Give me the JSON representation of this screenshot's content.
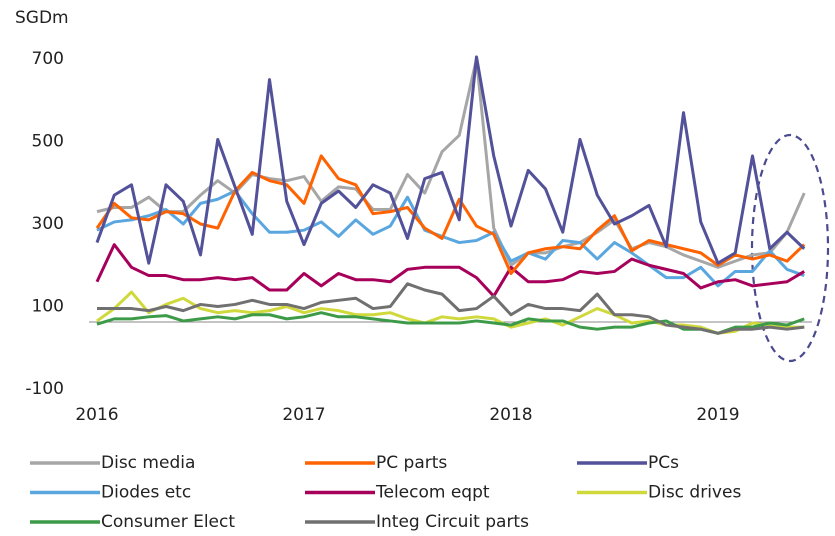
{
  "chart_data": {
    "type": "line",
    "y_label": "SGDm",
    "categories": [
      "2016",
      null,
      null,
      null,
      null,
      null,
      null,
      null,
      null,
      null,
      null,
      null,
      "2017",
      null,
      null,
      null,
      null,
      null,
      null,
      null,
      null,
      null,
      null,
      null,
      "2018",
      null,
      null,
      null,
      null,
      null,
      null,
      null,
      null,
      null,
      null,
      null,
      "2019",
      null,
      null,
      null,
      null,
      null
    ],
    "ylim": [
      -100,
      700
    ],
    "yticks": [
      -100,
      100,
      300,
      500,
      700
    ],
    "series": [
      {
        "name": "Disc media",
        "color": "#a6a6a6",
        "values": [
          330,
          340,
          340,
          365,
          330,
          330,
          370,
          405,
          375,
          420,
          410,
          405,
          415,
          355,
          390,
          385,
          335,
          335,
          420,
          375,
          475,
          515,
          700,
          290,
          200,
          230,
          230,
          245,
          255,
          280,
          310,
          240,
          255,
          245,
          225,
          210,
          195,
          210,
          225,
          230,
          280,
          375
        ]
      },
      {
        "name": "PC parts",
        "color": "#ff6200",
        "values": [
          290,
          350,
          315,
          310,
          330,
          325,
          300,
          290,
          380,
          425,
          405,
          395,
          350,
          465,
          410,
          395,
          325,
          330,
          340,
          290,
          265,
          360,
          295,
          275,
          180,
          230,
          240,
          245,
          240,
          285,
          320,
          235,
          260,
          250,
          240,
          230,
          200,
          225,
          215,
          225,
          210,
          250
        ]
      },
      {
        "name": "PCs",
        "color": "#525199",
        "values": [
          255,
          370,
          395,
          205,
          395,
          355,
          225,
          505,
          390,
          275,
          650,
          355,
          250,
          350,
          380,
          340,
          395,
          375,
          265,
          410,
          425,
          310,
          705,
          465,
          295,
          430,
          385,
          280,
          505,
          370,
          300,
          320,
          345,
          245,
          570,
          305,
          205,
          230,
          465,
          240,
          280,
          240
        ]
      },
      {
        "name": "Diodes etc",
        "color": "#5aa7e0",
        "values": [
          285,
          305,
          310,
          320,
          335,
          300,
          350,
          360,
          380,
          325,
          280,
          280,
          285,
          305,
          270,
          310,
          275,
          295,
          365,
          285,
          270,
          255,
          260,
          280,
          210,
          230,
          215,
          260,
          255,
          215,
          255,
          230,
          200,
          170,
          170,
          195,
          150,
          185,
          185,
          235,
          190,
          175
        ]
      },
      {
        "name": "Telecom eqpt",
        "color": "#a7005b",
        "values": [
          160,
          250,
          195,
          175,
          175,
          165,
          165,
          170,
          165,
          170,
          140,
          140,
          180,
          150,
          180,
          165,
          165,
          160,
          190,
          195,
          195,
          195,
          170,
          125,
          195,
          160,
          160,
          165,
          185,
          180,
          185,
          215,
          200,
          190,
          180,
          145,
          160,
          165,
          150,
          155,
          160,
          185
        ]
      },
      {
        "name": "Disc drives",
        "color": "#d0d93c",
        "values": [
          65,
          95,
          135,
          85,
          105,
          120,
          95,
          85,
          90,
          85,
          90,
          100,
          85,
          95,
          90,
          80,
          80,
          85,
          70,
          60,
          75,
          70,
          75,
          70,
          50,
          60,
          70,
          55,
          75,
          95,
          80,
          60,
          65,
          55,
          55,
          50,
          35,
          40,
          60,
          55,
          50,
          50
        ]
      },
      {
        "name": "Consumer Elect",
        "color": "#3d9a48",
        "values": [
          57,
          70,
          70,
          75,
          78,
          65,
          70,
          75,
          70,
          80,
          80,
          70,
          75,
          85,
          75,
          75,
          70,
          65,
          60,
          60,
          60,
          60,
          65,
          60,
          55,
          70,
          65,
          65,
          50,
          45,
          50,
          50,
          60,
          65,
          45,
          45,
          35,
          50,
          50,
          60,
          55,
          70
        ]
      },
      {
        "name": "Integ Circuit parts",
        "color": "#707070",
        "values": [
          95,
          95,
          95,
          90,
          100,
          90,
          105,
          100,
          105,
          115,
          105,
          105,
          95,
          110,
          115,
          120,
          95,
          100,
          155,
          140,
          130,
          90,
          95,
          125,
          80,
          105,
          95,
          95,
          90,
          130,
          80,
          80,
          75,
          55,
          50,
          45,
          35,
          45,
          45,
          50,
          45,
          50
        ]
      }
    ]
  }
}
